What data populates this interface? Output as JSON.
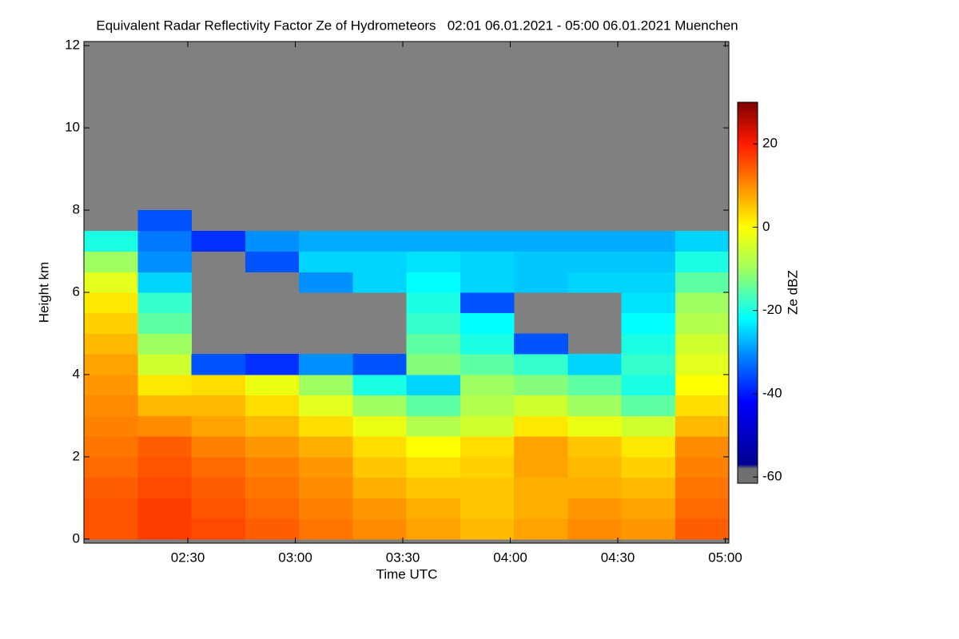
{
  "chart_data": {
    "type": "heatmap",
    "title": "Equivalent Radar Reflectivity Factor Ze of Hydrometeors   02:01 06.01.2021 - 05:00 06.01.2021 Muenchen",
    "xlabel": "Time UTC",
    "ylabel": "Height km",
    "xlim": [
      121,
      301
    ],
    "xticks": [
      {
        "value": 150,
        "label": "02:30"
      },
      {
        "value": 180,
        "label": "03:00"
      },
      {
        "value": 210,
        "label": "03:30"
      },
      {
        "value": 240,
        "label": "04:00"
      },
      {
        "value": 270,
        "label": "04:30"
      },
      {
        "value": 300,
        "label": "05:00"
      }
    ],
    "ylim": [
      -0.1,
      12.1
    ],
    "yticks": [
      0,
      2,
      4,
      6,
      8,
      10,
      12
    ],
    "background": "#808080",
    "x_edges": [
      121,
      136,
      151,
      166,
      181,
      196,
      211,
      226,
      241,
      256,
      271,
      286,
      301
    ],
    "y_edges": [
      0,
      0.5,
      1,
      1.5,
      2,
      2.5,
      3,
      3.5,
      4,
      4.5,
      5,
      5.5,
      6,
      6.5,
      7,
      7.5,
      8
    ],
    "z": [
      [
        15,
        17,
        16,
        14,
        12,
        10,
        8,
        6,
        8,
        10,
        9,
        14
      ],
      [
        15,
        17,
        15,
        13,
        11,
        9,
        7,
        5,
        7,
        9,
        8,
        13
      ],
      [
        14,
        16,
        14,
        12,
        10,
        7,
        5,
        5,
        7,
        7,
        6,
        12
      ],
      [
        13,
        15,
        13,
        11,
        9,
        5,
        3,
        4,
        8,
        6,
        4,
        11
      ],
      [
        12,
        14,
        11,
        9,
        7,
        3,
        0,
        3,
        8,
        5,
        2,
        10
      ],
      [
        11,
        10,
        8,
        6,
        3,
        -2,
        -8,
        -5,
        2,
        -2,
        -5,
        6
      ],
      [
        10,
        6,
        6,
        3,
        -3,
        -10,
        -15,
        -8,
        -5,
        -10,
        -15,
        3
      ],
      [
        9,
        2,
        3,
        -2,
        -10,
        -20,
        -25,
        -10,
        -12,
        -15,
        -20,
        0
      ],
      [
        8,
        -5,
        -35,
        -38,
        -30,
        -35,
        -12,
        -15,
        -18,
        -25,
        -18,
        -3
      ],
      [
        6,
        -10,
        null,
        null,
        null,
        null,
        -15,
        -20,
        -35,
        null,
        -20,
        -5
      ],
      [
        4,
        -15,
        null,
        null,
        null,
        null,
        -18,
        -22,
        null,
        null,
        -22,
        -8
      ],
      [
        2,
        -18,
        null,
        null,
        null,
        null,
        -20,
        -35,
        null,
        null,
        -24,
        -10
      ],
      [
        -3,
        -25,
        null,
        null,
        -30,
        -25,
        -22,
        -25,
        -26,
        -25,
        -25,
        -15
      ],
      [
        -10,
        -30,
        null,
        -35,
        -25,
        -25,
        -24,
        -25,
        -26,
        -26,
        -26,
        -20
      ],
      [
        -20,
        -32,
        -38,
        -30,
        -28,
        -28,
        -28,
        -28,
        -28,
        -28,
        -28,
        -25
      ],
      [
        null,
        -35,
        null,
        null,
        null,
        null,
        null,
        null,
        null,
        null,
        null,
        null
      ]
    ],
    "zlabel": "Ze dBZ",
    "zlim": [
      -61.5,
      30
    ],
    "zticks": [
      -60,
      -40,
      -20,
      0,
      20
    ],
    "colormap": [
      {
        "value": -61.5,
        "color": "#707070"
      },
      {
        "value": -58,
        "color": "#707070"
      },
      {
        "value": -57,
        "color": "#00008f"
      },
      {
        "value": -42,
        "color": "#0000ff"
      },
      {
        "value": -30,
        "color": "#0090ff"
      },
      {
        "value": -22,
        "color": "#00ffff"
      },
      {
        "value": -10,
        "color": "#a0ff60"
      },
      {
        "value": 0,
        "color": "#ffff00"
      },
      {
        "value": 10,
        "color": "#ff8c00"
      },
      {
        "value": 20,
        "color": "#ff1a00"
      },
      {
        "value": 30,
        "color": "#7f0000"
      }
    ]
  }
}
